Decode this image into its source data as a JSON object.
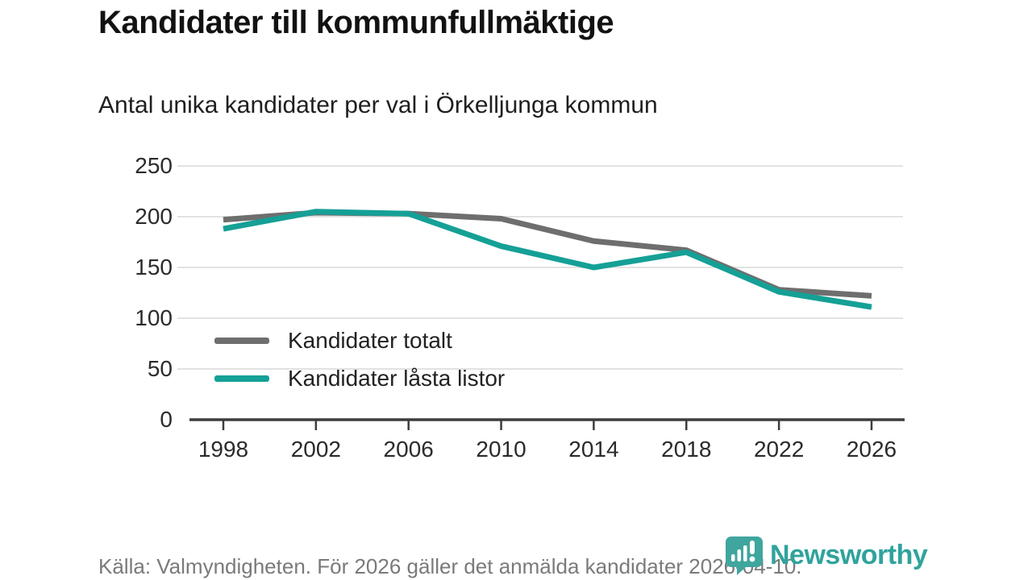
{
  "header": {
    "title": "Kandidater till kommunfullmäktige",
    "subtitle": "Antal unika kandidater per val i Örkelljunga kommun"
  },
  "chart_data": {
    "type": "line",
    "categories": [
      "1998",
      "2002",
      "2006",
      "2010",
      "2014",
      "2018",
      "2022",
      "2026"
    ],
    "series": [
      {
        "name": "Kandidater totalt",
        "color": "#6E6E6E",
        "values": [
          197,
          204,
          203,
          198,
          176,
          167,
          128,
          122
        ]
      },
      {
        "name": "Kandidater låsta listor",
        "color": "#15A096",
        "values": [
          188,
          205,
          203,
          171,
          150,
          165,
          126,
          111
        ]
      }
    ],
    "title": "Kandidater till kommunfullmäktige",
    "subtitle": "Antal unika kandidater per val i Örkelljunga kommun",
    "xlabel": "",
    "ylabel": "",
    "ylim": [
      0,
      250
    ],
    "yticks": [
      0,
      50,
      100,
      150,
      200,
      250
    ],
    "grid": "horizontal",
    "legend_position": "inside-bottom-left"
  },
  "footer": {
    "source": "Källa: Valmyndigheten. För 2026 gäller det anmälda kandidater 2026-04-10.",
    "brand": "Newsworthy"
  },
  "colors": {
    "line_total": "#6E6E6E",
    "line_locked": "#15A096",
    "gridline": "#e2e2e2",
    "axis": "#3d3d3d",
    "logo_teal": "#3fa69e",
    "wordmark_teal": "#2fa39c",
    "footer_text": "#7a7a7a"
  }
}
